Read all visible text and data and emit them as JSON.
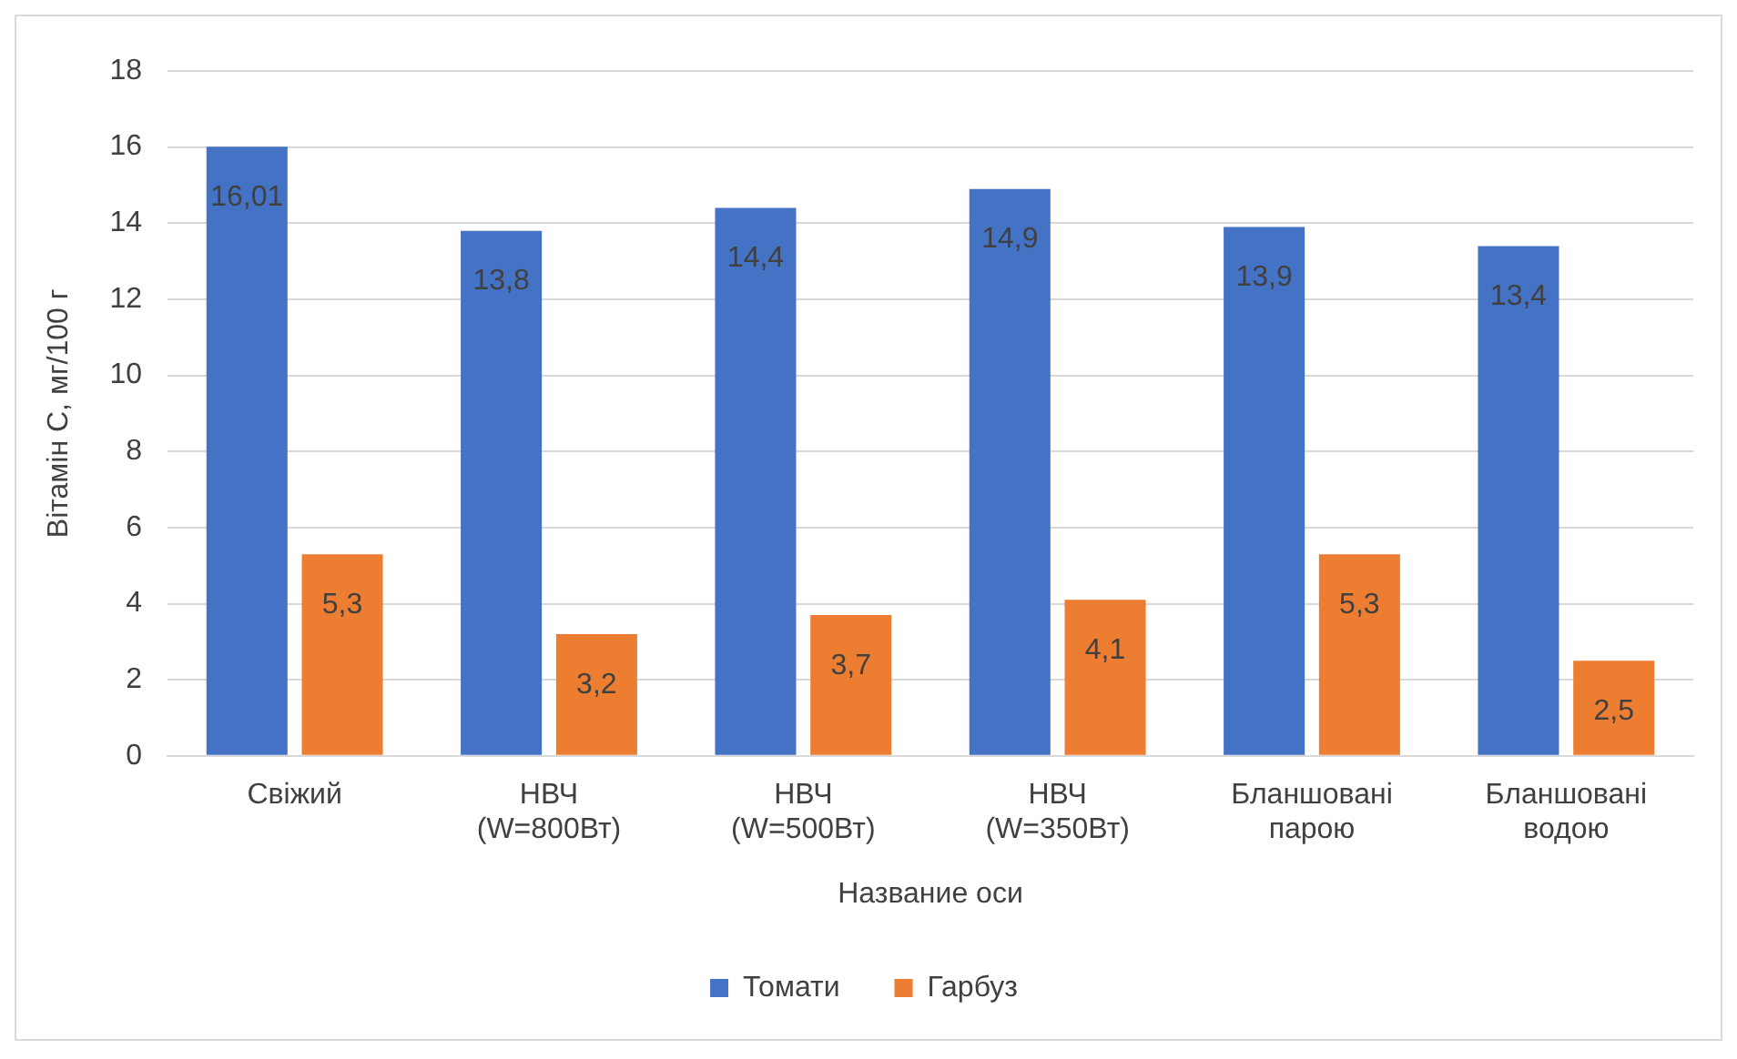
{
  "chart_data": {
    "type": "bar",
    "xlabel": "Название оси",
    "ylabel": "Вітамін С, мг/100 г",
    "categories": [
      "Свіжий",
      "НВЧ (W=800Вт)",
      "НВЧ (W=500Вт)",
      "НВЧ (W=350Вт)",
      "Бланшовані парою",
      "Бланшовані водою"
    ],
    "series": [
      {
        "name": "Томати",
        "color": "#4472c4",
        "values": [
          16.01,
          13.8,
          14.4,
          14.9,
          13.9,
          13.4
        ],
        "value_labels": [
          "16,01",
          "13,8",
          "14,4",
          "14,9",
          "13,9",
          "13,4"
        ]
      },
      {
        "name": "Гарбуз",
        "color": "#ed7d31",
        "values": [
          5.3,
          3.2,
          3.7,
          4.1,
          5.3,
          2.5
        ],
        "value_labels": [
          "5,3",
          "3,2",
          "3,7",
          "4,1",
          "5,3",
          "2,5"
        ]
      }
    ],
    "ylim": [
      0,
      18
    ],
    "yticks": [
      0,
      2,
      4,
      6,
      8,
      10,
      12,
      14,
      16,
      18
    ],
    "grid": "y",
    "legend": "bottom"
  }
}
